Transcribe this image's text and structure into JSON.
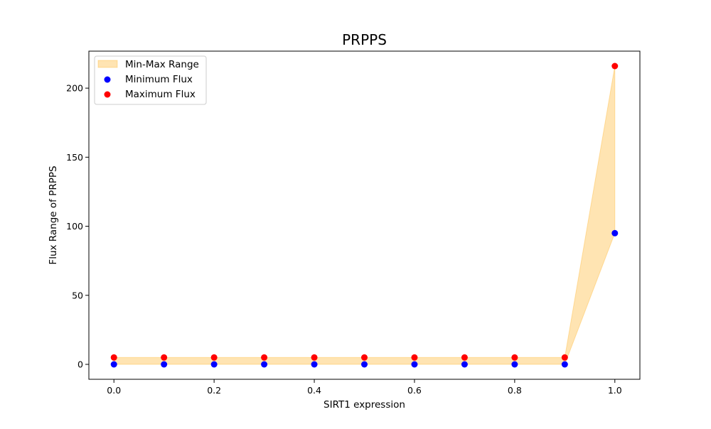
{
  "chart_data": {
    "type": "scatter",
    "title": "PRPPS",
    "xlabel": "SIRT1 expression",
    "ylabel": "Flux Range of PRPPS",
    "x": [
      0.0,
      0.1,
      0.2,
      0.3,
      0.4,
      0.5,
      0.6,
      0.7,
      0.8,
      0.9,
      1.0
    ],
    "xlim": [
      -0.05,
      1.05
    ],
    "ylim": [
      -10.8,
      226.8
    ],
    "x_ticks": [
      0.0,
      0.2,
      0.4,
      0.6,
      0.8,
      1.0
    ],
    "x_tick_labels": [
      "0.0",
      "0.2",
      "0.4",
      "0.6",
      "0.8",
      "1.0"
    ],
    "y_ticks": [
      0,
      50,
      100,
      150,
      200
    ],
    "y_tick_labels": [
      "0",
      "50",
      "100",
      "150",
      "200"
    ],
    "grid": false,
    "legend_placement": "upper-left",
    "series": [
      {
        "name": "Min-Max Range",
        "kind": "fill_between",
        "color": "#ffa500",
        "opacity": 0.3,
        "lower": [
          0,
          0,
          0,
          0,
          0,
          0,
          0,
          0,
          0,
          0,
          95
        ],
        "upper": [
          5,
          5,
          5,
          5,
          5,
          5,
          5,
          5,
          5,
          5,
          216
        ]
      },
      {
        "name": "Minimum Flux",
        "kind": "points",
        "color": "#0000ff",
        "values": [
          0,
          0,
          0,
          0,
          0,
          0,
          0,
          0,
          0,
          0,
          95
        ]
      },
      {
        "name": "Maximum Flux",
        "kind": "points",
        "color": "#ff0000",
        "values": [
          5,
          5,
          5,
          5,
          5,
          5,
          5,
          5,
          5,
          5,
          216
        ]
      }
    ]
  }
}
